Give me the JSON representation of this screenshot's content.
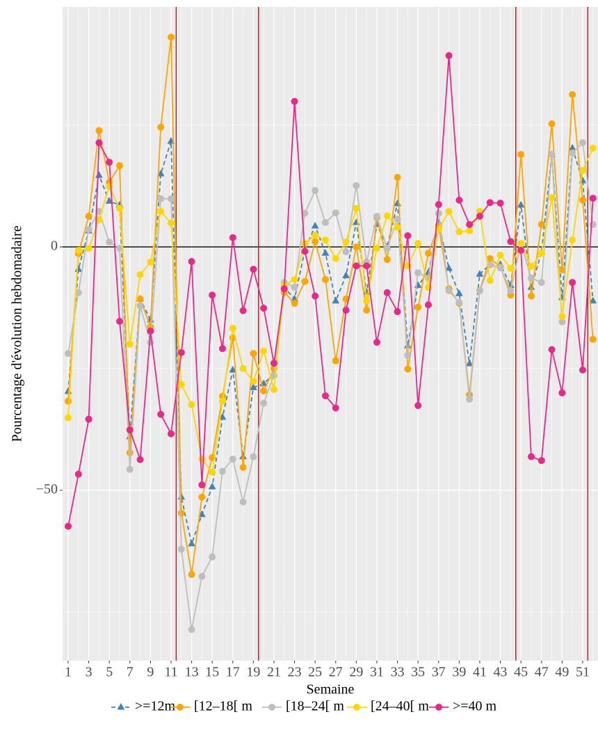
{
  "chart_data": {
    "type": "line",
    "x_label": "Semaine",
    "y_label": "Pourcentage d'évolution hebdomadaire",
    "x": [
      1,
      2,
      3,
      4,
      5,
      6,
      7,
      8,
      9,
      10,
      11,
      12,
      13,
      14,
      15,
      16,
      17,
      18,
      19,
      20,
      21,
      22,
      23,
      24,
      25,
      26,
      27,
      28,
      29,
      30,
      31,
      32,
      33,
      34,
      35,
      36,
      37,
      38,
      39,
      40,
      41,
      42,
      43,
      44,
      45,
      46,
      47,
      48,
      49,
      50,
      51,
      52
    ],
    "xlim": [
      0.46,
      52.49
    ],
    "xticks": [
      1,
      3,
      5,
      7,
      9,
      11,
      13,
      15,
      17,
      19,
      21,
      23,
      25,
      27,
      29,
      31,
      33,
      35,
      37,
      39,
      41,
      43,
      45,
      47,
      49,
      51
    ],
    "ylim": [
      -85,
      49.3
    ],
    "yticks": [
      {
        "value": -50,
        "label": "−50"
      },
      0
    ],
    "grid": true,
    "hline": 0,
    "vlines": [
      11.5,
      19.5,
      44.5,
      51.5
    ],
    "legend": "bottom",
    "series": [
      {
        "name": ">=12m",
        "color": "#4682b4",
        "dash": true,
        "shape": "triangle",
        "values": [
          -29.7,
          -4.6,
          3.3,
          14.7,
          9.4,
          8.6,
          -39,
          -10.7,
          -15,
          15,
          21.7,
          -51.4,
          -61,
          -55,
          -49.3,
          -35,
          -25.3,
          -43.1,
          -28.9,
          -28.1,
          -26.1,
          -8.3,
          -10.7,
          -0.7,
          4.3,
          -1.3,
          -11.1,
          -5.9,
          5,
          -9.3,
          4.6,
          0,
          8.9,
          -20.3,
          -7.9,
          -5.3,
          5,
          -4.4,
          -9.6,
          -24,
          -5.6,
          -3.6,
          -3.6,
          -7.9,
          8.6,
          -8.3,
          -1.1,
          19,
          -10.4,
          20.3,
          13.6,
          -11.1
        ]
      },
      {
        "name": "[12–18[ m",
        "color": "#ffa500",
        "dash": false,
        "shape": "circle",
        "values": [
          -31.7,
          -1.4,
          6.3,
          23.9,
          13.3,
          16.7,
          -42.3,
          -10.7,
          -16.4,
          24.6,
          43.1,
          -54.7,
          -67.3,
          -51.4,
          -43.3,
          -30.7,
          -18.7,
          -45.3,
          -21.9,
          -29.6,
          -25,
          -9.3,
          -11.6,
          -7.1,
          1.1,
          -6.7,
          -23.4,
          -10.7,
          0,
          -13,
          6,
          -2.6,
          14.3,
          -25.1,
          -12.4,
          -1.3,
          4.3,
          -8.6,
          -11.6,
          -30.4,
          -8.9,
          -2.4,
          -4.1,
          -9.9,
          19,
          -10.1,
          4.6,
          25.3,
          -4.7,
          31.3,
          9.6,
          -19
        ]
      },
      {
        "name": "[18–24[ m",
        "color": "#bebebe",
        "dash": false,
        "shape": "circle",
        "values": [
          -21.9,
          -9.4,
          3.6,
          7.3,
          1,
          -0.3,
          -45.7,
          -12.1,
          -19.6,
          9.9,
          9.9,
          -62.1,
          -78.6,
          -67.7,
          -63.7,
          -46.1,
          -43.6,
          -52.4,
          -43.1,
          -32.1,
          -26.4,
          -7.3,
          -8.3,
          6.9,
          11.6,
          5,
          7,
          -1,
          12.6,
          -3.1,
          6.3,
          -0.3,
          5.7,
          -22.3,
          -5.3,
          -6.4,
          6.9,
          -9,
          -11.4,
          -31.3,
          -9,
          -3.7,
          -4.3,
          -9,
          0.7,
          -6.4,
          -7.3,
          19,
          -15.4,
          19.3,
          21.4,
          4.6
        ]
      },
      {
        "name": "[24–40[ m",
        "color": "#ffd700",
        "dash": false,
        "shape": "circle",
        "values": [
          -35.1,
          -0.7,
          -0.3,
          5.6,
          12.4,
          7.9,
          -20,
          -5.7,
          -3.1,
          7.3,
          4.9,
          -28.3,
          -32.4,
          -43.6,
          -46.3,
          -31.7,
          -16.7,
          -25,
          -27.6,
          -21.4,
          -29.3,
          -7.9,
          -6.7,
          0.7,
          2.4,
          1.4,
          -2.4,
          1,
          7.9,
          -11.1,
          -0.3,
          6.4,
          4,
          -3.9,
          0.7,
          -8.3,
          3.6,
          7.3,
          3.1,
          3.3,
          7.3,
          -6.9,
          -1.7,
          -4.4,
          0.7,
          -4,
          -1.3,
          10.1,
          -14.3,
          1.4,
          15.7,
          20.3
        ]
      },
      {
        "name": ">=40 m",
        "color": "#e7298a",
        "dash": false,
        "shape": "circle",
        "values": [
          -57.4,
          -46.7,
          -35.4,
          21.4,
          17.4,
          -15.3,
          -37.6,
          -43.7,
          -17.3,
          -34.4,
          -38.4,
          -21.7,
          -3,
          -48.9,
          -9.9,
          -20.9,
          1.9,
          -13.1,
          -4.6,
          -12.6,
          -23.9,
          -8.6,
          29.9,
          -0.9,
          -10.1,
          -30.6,
          -33.1,
          -13,
          -3.9,
          -3.9,
          -19.6,
          -9.4,
          -13.3,
          2.3,
          -32.6,
          -11.9,
          8.7,
          39.3,
          9.6,
          4.6,
          6.3,
          9.1,
          9,
          1.1,
          -0.7,
          -43.1,
          -43.9,
          -21.1,
          -30,
          -7.3,
          -25.3,
          10
        ]
      }
    ]
  }
}
